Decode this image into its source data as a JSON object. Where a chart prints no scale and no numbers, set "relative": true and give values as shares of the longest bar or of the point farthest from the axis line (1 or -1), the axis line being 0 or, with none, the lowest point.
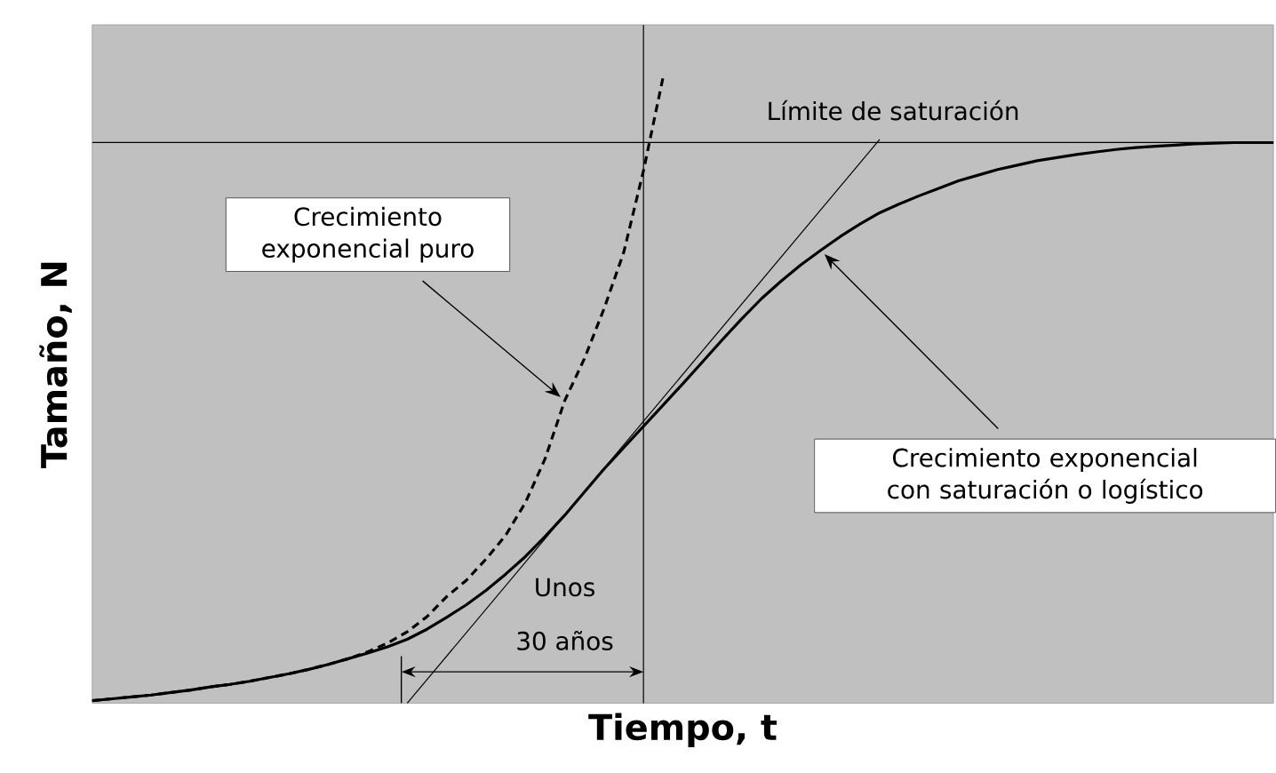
{
  "chart_data": {
    "type": "line",
    "relative": true,
    "xlabel": "Tiempo, t",
    "ylabel": "Tamaño, N",
    "categories": [
      null,
      null,
      null,
      null,
      null,
      null,
      null,
      null,
      null,
      null,
      null,
      null,
      null,
      null,
      null,
      null,
      null,
      null,
      null,
      null,
      null,
      null,
      null,
      null,
      null,
      null,
      null,
      null,
      null,
      null,
      null,
      null,
      null,
      null,
      null,
      null,
      null,
      null,
      null,
      null,
      null,
      null,
      null,
      null,
      null,
      null,
      null,
      null,
      null,
      null,
      null,
      null,
      null,
      null,
      null,
      null,
      null,
      null,
      null,
      null,
      null
    ],
    "series": [
      {
        "color": "#000000",
        "values": [
          0.004,
          0.007,
          0.01,
          0.013,
          0.017,
          0.021,
          0.026,
          0.03,
          0.035,
          0.041,
          0.047,
          0.054,
          0.062,
          0.071,
          0.08,
          0.09,
          0.102,
          0.118,
          0.137,
          0.157,
          0.18,
          0.206,
          0.234,
          0.266,
          0.3,
          0.337,
          0.374,
          0.408,
          0.442,
          0.476,
          0.51,
          0.545,
          0.58,
          0.614,
          0.646,
          0.674,
          0.7,
          0.723,
          0.745,
          0.765,
          0.783,
          0.797,
          0.81,
          0.822,
          0.834,
          0.843,
          0.852,
          0.859,
          0.866,
          0.871,
          0.876,
          0.88,
          0.884,
          0.887,
          0.889,
          0.891,
          0.893,
          0.894,
          0.895,
          0.895,
          0.895
        ]
      },
      {
        "color": "#000000",
        "line_style": "dashed",
        "values": [
          0.004,
          0.007,
          0.01,
          0.013,
          0.017,
          0.021,
          0.026,
          0.03,
          0.035,
          0.041,
          0.047,
          0.054,
          0.062,
          0.071,
          0.082,
          0.096,
          0.114,
          0.138,
          0.17,
          0.196,
          0.23,
          0.268,
          0.32,
          0.39,
          0.483,
          0.55,
          0.63,
          0.72,
          0.85,
          1.0,
          null,
          null,
          null,
          null,
          null,
          null,
          null,
          null,
          null,
          null,
          null,
          null,
          null,
          null,
          null,
          null,
          null,
          null,
          null,
          null,
          null,
          null,
          null,
          null,
          null,
          null,
          null,
          null,
          null,
          null,
          null
        ]
      },
      {
        "color": "#000000",
        "values": [
          null,
          null,
          null,
          null,
          null,
          null,
          null,
          null,
          null,
          null,
          null,
          null,
          null,
          null,
          null,
          null,
          0,
          null,
          null,
          null,
          null,
          null,
          null,
          null,
          null,
          null,
          null,
          null,
          null,
          null,
          null,
          null,
          null,
          null,
          null,
          null,
          null,
          null,
          null,
          null,
          0.9,
          null,
          null,
          null,
          null,
          null,
          null,
          null,
          null,
          null,
          null,
          null,
          null,
          null,
          null,
          null,
          null,
          null,
          null,
          null,
          null
        ]
      }
    ],
    "ref_lines": [
      {
        "axis": "y",
        "value": 0.895,
        "label": "Límite de saturación",
        "color": "#000000"
      }
    ],
    "annotations": [
      "Crecimiento exponencial puro",
      "Crecimiento exponencial con saturación o logístico",
      "Unos",
      "30 años"
    ]
  }
}
